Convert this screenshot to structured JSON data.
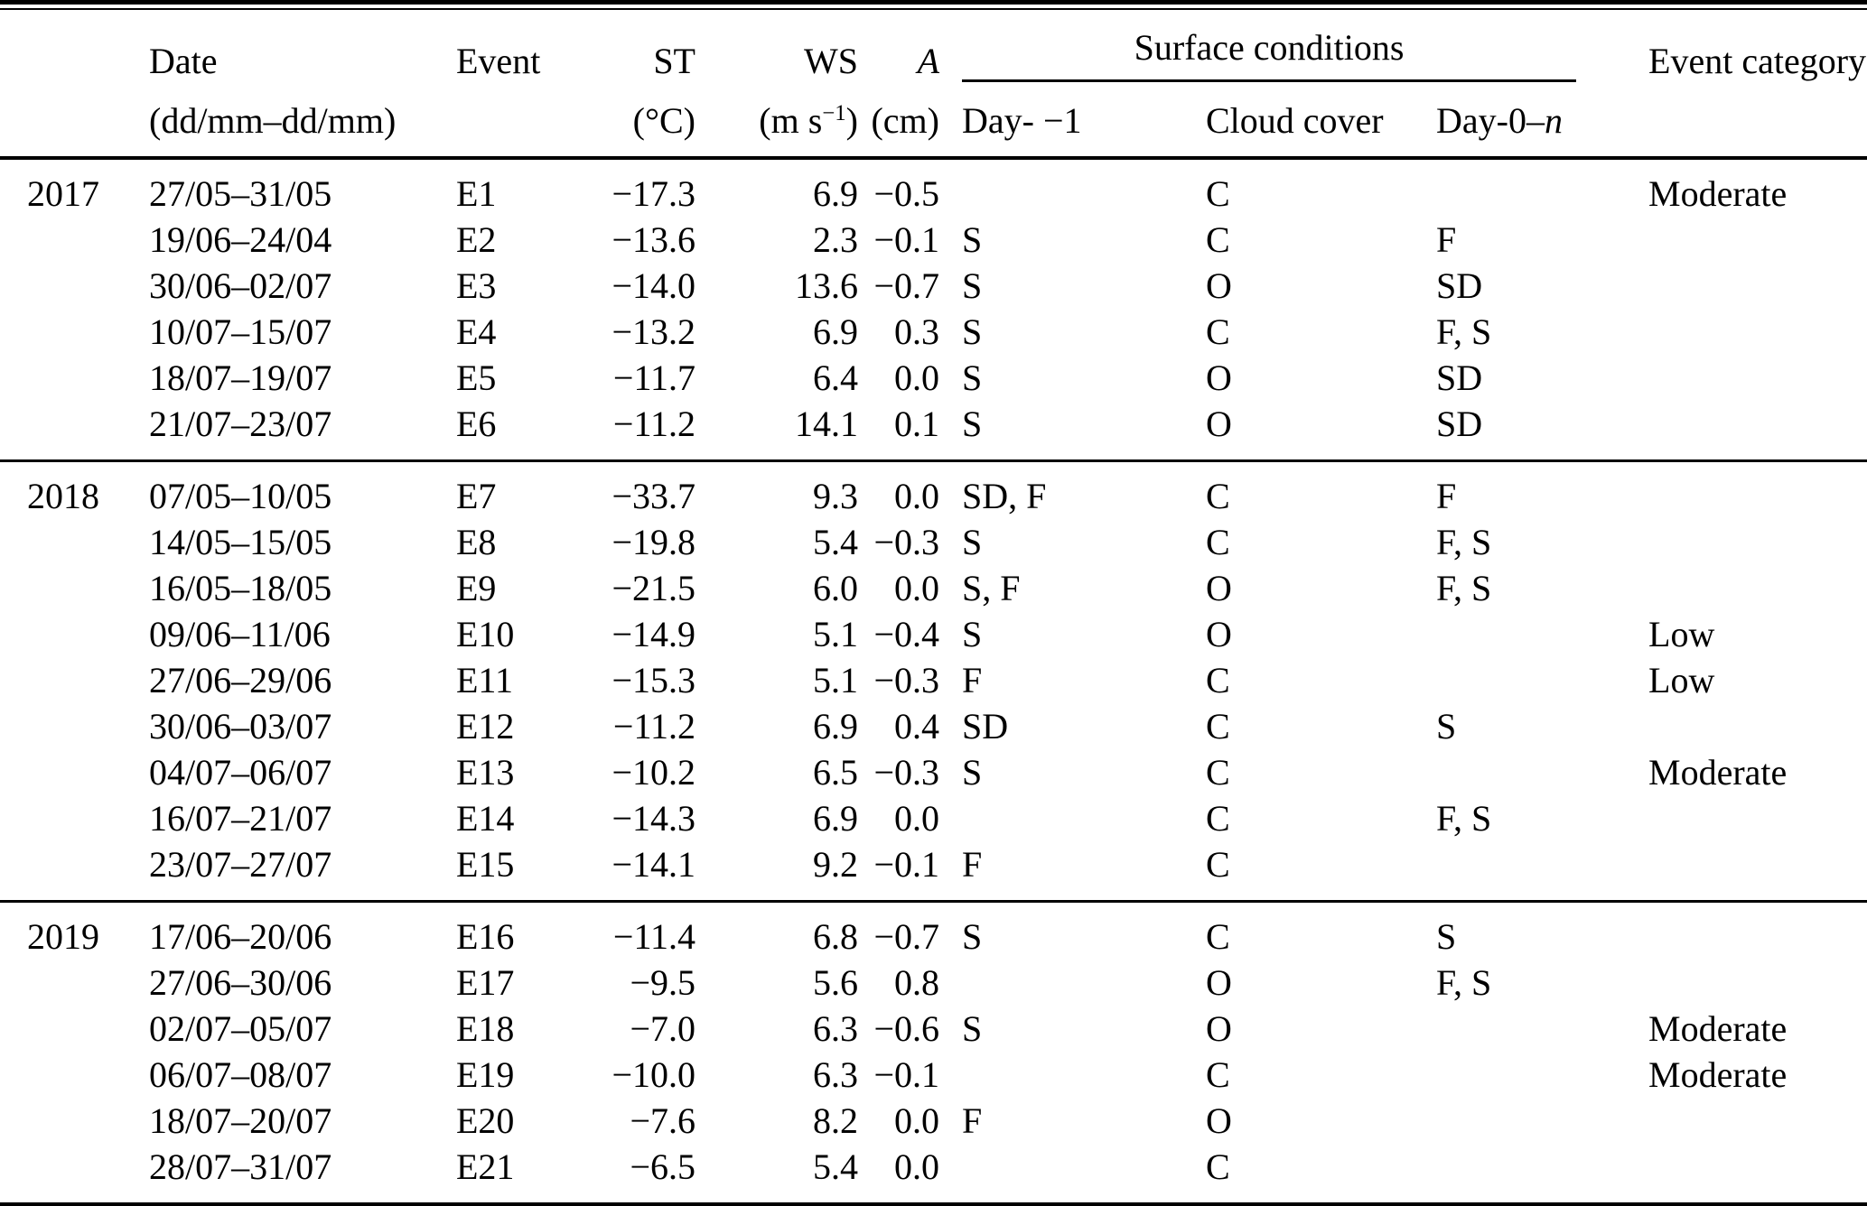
{
  "table": {
    "headers": {
      "date": "Date",
      "date_sub": "(dd/mm–dd/mm)",
      "event": "Event",
      "st": "ST",
      "st_sub": "(°C)",
      "ws": "WS",
      "ws_sub_pre": "(m s",
      "ws_sub_sup": "−1",
      "ws_sub_post": ")",
      "a": "A",
      "a_sub": "(cm)",
      "surface": "Surface conditions",
      "day_minus1": "Day- −1",
      "cloud": "Cloud cover",
      "day0_prefix": "Day-0–",
      "day0_n": "n",
      "category": "Event category"
    },
    "groups": [
      {
        "year": "2017",
        "rows": [
          {
            "date": "27/05–31/05",
            "event": "E1",
            "st": "−17.3",
            "ws": "6.9",
            "a": "−0.5",
            "day_minus1": "",
            "cloud": "C",
            "day_0n": "",
            "category": "Moderate"
          },
          {
            "date": "19/06–24/04",
            "event": "E2",
            "st": "−13.6",
            "ws": "2.3",
            "a": "−0.1",
            "day_minus1": "S",
            "cloud": "C",
            "day_0n": "F",
            "category": ""
          },
          {
            "date": "30/06–02/07",
            "event": "E3",
            "st": "−14.0",
            "ws": "13.6",
            "a": "−0.7",
            "day_minus1": "S",
            "cloud": "O",
            "day_0n": "SD",
            "category": ""
          },
          {
            "date": "10/07–15/07",
            "event": "E4",
            "st": "−13.2",
            "ws": "6.9",
            "a": "0.3",
            "day_minus1": "S",
            "cloud": "C",
            "day_0n": "F, S",
            "category": ""
          },
          {
            "date": "18/07–19/07",
            "event": "E5",
            "st": "−11.7",
            "ws": "6.4",
            "a": "0.0",
            "day_minus1": "S",
            "cloud": "O",
            "day_0n": "SD",
            "category": ""
          },
          {
            "date": "21/07–23/07",
            "event": "E6",
            "st": "−11.2",
            "ws": "14.1",
            "a": "0.1",
            "day_minus1": "S",
            "cloud": "O",
            "day_0n": "SD",
            "category": ""
          }
        ]
      },
      {
        "year": "2018",
        "rows": [
          {
            "date": "07/05–10/05",
            "event": "E7",
            "st": "−33.7",
            "ws": "9.3",
            "a": "0.0",
            "day_minus1": "SD, F",
            "cloud": "C",
            "day_0n": "F",
            "category": ""
          },
          {
            "date": "14/05–15/05",
            "event": "E8",
            "st": "−19.8",
            "ws": "5.4",
            "a": "−0.3",
            "day_minus1": "S",
            "cloud": "C",
            "day_0n": "F, S",
            "category": ""
          },
          {
            "date": "16/05–18/05",
            "event": "E9",
            "st": "−21.5",
            "ws": "6.0",
            "a": "0.0",
            "day_minus1": "S, F",
            "cloud": "O",
            "day_0n": "F, S",
            "category": ""
          },
          {
            "date": "09/06–11/06",
            "event": "E10",
            "st": "−14.9",
            "ws": "5.1",
            "a": "−0.4",
            "day_minus1": "S",
            "cloud": "O",
            "day_0n": "",
            "category": "Low"
          },
          {
            "date": "27/06–29/06",
            "event": "E11",
            "st": "−15.3",
            "ws": "5.1",
            "a": "−0.3",
            "day_minus1": "F",
            "cloud": "C",
            "day_0n": "",
            "category": "Low"
          },
          {
            "date": "30/06–03/07",
            "event": "E12",
            "st": "−11.2",
            "ws": "6.9",
            "a": "0.4",
            "day_minus1": "SD",
            "cloud": "C",
            "day_0n": "S",
            "category": ""
          },
          {
            "date": "04/07–06/07",
            "event": "E13",
            "st": "−10.2",
            "ws": "6.5",
            "a": "−0.3",
            "day_minus1": "S",
            "cloud": "C",
            "day_0n": "",
            "category": "Moderate"
          },
          {
            "date": "16/07–21/07",
            "event": "E14",
            "st": "−14.3",
            "ws": "6.9",
            "a": "0.0",
            "day_minus1": "",
            "cloud": "C",
            "day_0n": "F, S",
            "category": ""
          },
          {
            "date": "23/07–27/07",
            "event": "E15",
            "st": "−14.1",
            "ws": "9.2",
            "a": "−0.1",
            "day_minus1": "F",
            "cloud": "C",
            "day_0n": "",
            "category": ""
          }
        ]
      },
      {
        "year": "2019",
        "rows": [
          {
            "date": "17/06–20/06",
            "event": "E16",
            "st": "−11.4",
            "ws": "6.8",
            "a": "−0.7",
            "day_minus1": "S",
            "cloud": "C",
            "day_0n": "S",
            "category": ""
          },
          {
            "date": "27/06–30/06",
            "event": "E17",
            "st": "−9.5",
            "ws": "5.6",
            "a": "0.8",
            "day_minus1": "",
            "cloud": "O",
            "day_0n": "F, S",
            "category": ""
          },
          {
            "date": "02/07–05/07",
            "event": "E18",
            "st": "−7.0",
            "ws": "6.3",
            "a": "−0.6",
            "day_minus1": "S",
            "cloud": "O",
            "day_0n": "",
            "category": "Moderate"
          },
          {
            "date": "06/07–08/07",
            "event": "E19",
            "st": "−10.0",
            "ws": "6.3",
            "a": "−0.1",
            "day_minus1": "",
            "cloud": "C",
            "day_0n": "",
            "category": "Moderate"
          },
          {
            "date": "18/07–20/07",
            "event": "E20",
            "st": "−7.6",
            "ws": "8.2",
            "a": "0.0",
            "day_minus1": "F",
            "cloud": "O",
            "day_0n": "",
            "category": ""
          },
          {
            "date": "28/07–31/07",
            "event": "E21",
            "st": "−6.5",
            "ws": "5.4",
            "a": "0.0",
            "day_minus1": "",
            "cloud": "C",
            "day_0n": "",
            "category": ""
          }
        ]
      }
    ]
  }
}
